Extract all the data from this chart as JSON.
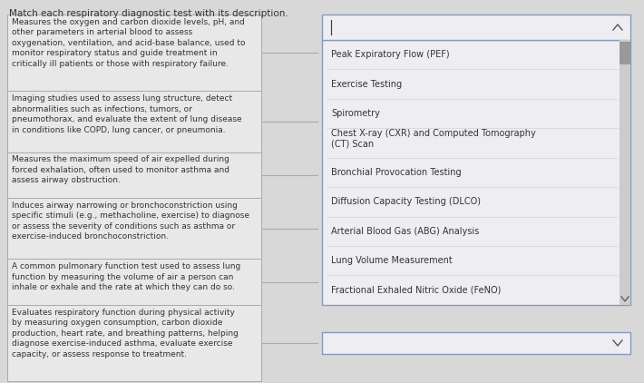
{
  "title": "Match each respiratory diagnostic test with its description.",
  "background_color": "#d8d8d8",
  "left_outer_bg": "#d8d8d8",
  "left_box_bg": "#e8e8e8",
  "left_box_border": "#aaaaaa",
  "right_dropdown_bg": "#eeeef2",
  "right_dropdown_border": "#8899bb",
  "scrollbar_track": "#cccccc",
  "scrollbar_thumb": "#999999",
  "descriptions": [
    "Measures the oxygen and carbon dioxide levels, pH, and\nother parameters in arterial blood to assess\noxygenation, ventilation, and acid-base balance, used to\nmonitor respiratory status and guide treatment in\ncritically ill patients or those with respiratory failure.",
    "Imaging studies used to assess lung structure, detect\nabnormalities such as infections, tumors, or\npneumothorax, and evaluate the extent of lung disease\nin conditions like COPD, lung cancer, or pneumonia.",
    "Measures the maximum speed of air expelled during\nforced exhalation, often used to monitor asthma and\nassess airway obstruction.",
    "Induces airway narrowing or bronchoconstriction using\nspecific stimuli (e.g., methacholine, exercise) to diagnose\nor assess the severity of conditions such as asthma or\nexercise-induced bronchoconstriction.",
    "A common pulmonary function test used to assess lung\nfunction by measuring the volume of air a person can\ninhale or exhale and the rate at which they can do so.",
    "Evaluates respiratory function during physical activity\nby measuring oxygen consumption, carbon dioxide\nproduction, heart rate, and breathing patterns, helping\ndiagnose exercise-induced asthma, evaluate exercise\ncapacity, or assess response to treatment."
  ],
  "dropdown_items": [
    "Peak Expiratory Flow (PEF)",
    "Exercise Testing",
    "Spirometry",
    "Chest X-ray (CXR) and Computed Tomography\n(CT) Scan",
    "Bronchial Provocation Testing",
    "Diffusion Capacity Testing (DLCO)",
    "Arterial Blood Gas (ABG) Analysis",
    "Lung Volume Measurement",
    "Fractional Exhaled Nitric Oxide (FeNO)"
  ],
  "text_color": "#333333",
  "title_fontsize": 7.5,
  "desc_fontsize": 6.5,
  "dropdown_fontsize": 7.0,
  "line_counts": [
    5,
    4,
    3,
    4,
    3,
    5
  ]
}
